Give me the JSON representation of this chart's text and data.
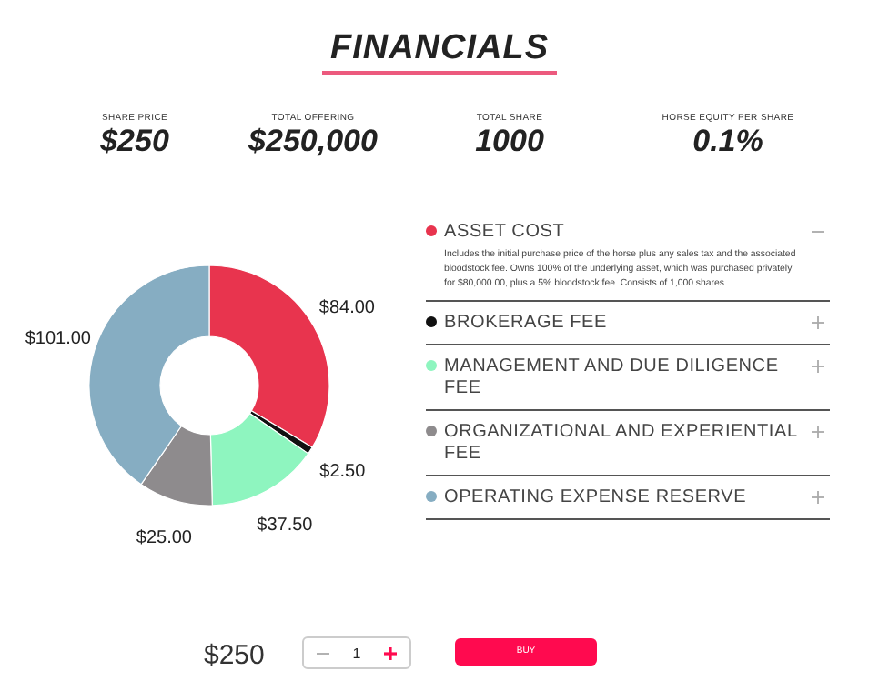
{
  "chart_data": {
    "type": "donut",
    "title": "FINANCIALS",
    "categories": [
      "ASSET COST",
      "BROKERAGE FEE",
      "MANAGEMENT AND DUE DILIGENCE FEE",
      "ORGANIZATIONAL AND EXPERIENTIAL FEE",
      "OPERATING EXPENSE RESERVE"
    ],
    "values": [
      84,
      2.5,
      37.5,
      25,
      101
    ],
    "colors": [
      "#e8344e",
      "#111111",
      "#8ef5bf",
      "#8e8b8d",
      "#86adc2"
    ],
    "value_labels": [
      "$84.00",
      "$2.50",
      "$37.50",
      "$25.00",
      "$101.00"
    ],
    "legend": "right",
    "annotations": [
      "SHARE PRICE",
      "$250",
      "TOTAL OFFERING",
      "$250,000",
      "TOTAL SHARE",
      "1000",
      "HORSE EQUITY PER SHARE",
      "0.1%",
      "Includes the initial purchase price of the horse plus any sales tax and the associated bloodstock fee. Owns 100% of the underlying asset, which was purchased privately for $80,000.00, plus a 5% bloodstock fee. Consists of 1,000 shares.",
      "$250",
      "1",
      "BUY"
    ]
  }
}
